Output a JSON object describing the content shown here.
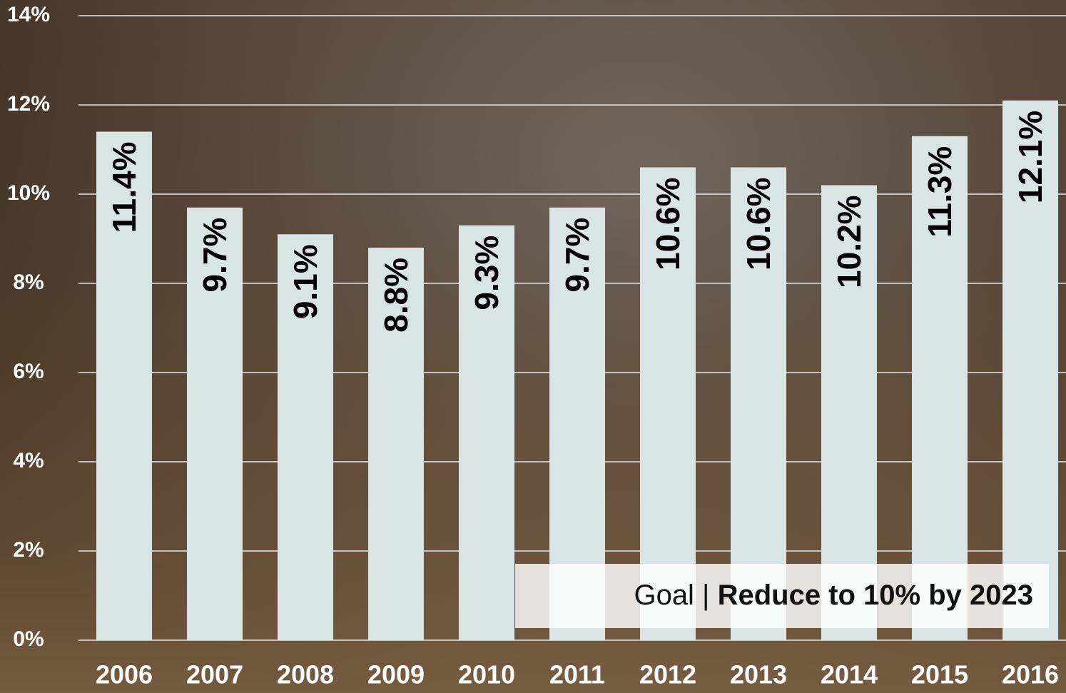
{
  "chart_data": {
    "type": "bar",
    "categories": [
      "2006",
      "2007",
      "2008",
      "2009",
      "2010",
      "2011",
      "2012",
      "2013",
      "2014",
      "2015",
      "2016"
    ],
    "values": [
      11.4,
      9.7,
      9.1,
      8.8,
      9.3,
      9.7,
      10.6,
      10.6,
      10.2,
      11.3,
      12.1
    ],
    "value_labels": [
      "11.4%",
      "9.7%",
      "9.1%",
      "8.8%",
      "9.3%",
      "9.7%",
      "10.6%",
      "10.6%",
      "10.2%",
      "11.3%",
      "12.1%"
    ],
    "color": "#d9e5e4",
    "ylim": [
      0,
      14
    ],
    "yticks": [
      {
        "value": 0,
        "label": "0%"
      },
      {
        "value": 2,
        "label": "2%"
      },
      {
        "value": 4,
        "label": "4%"
      },
      {
        "value": 6,
        "label": "6%"
      },
      {
        "value": 8,
        "label": "8%"
      },
      {
        "value": 10,
        "label": "10%"
      },
      {
        "value": 12,
        "label": "12%"
      },
      {
        "value": 14,
        "label": "14%"
      }
    ],
    "grid": true,
    "annotation": {
      "prefix": "Goal |",
      "text": "Reduce to 10% by 2023"
    }
  }
}
